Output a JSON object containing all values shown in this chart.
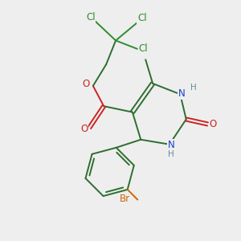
{
  "bg_color": "#eeeeee",
  "colors": {
    "bond": "#2d6e30",
    "Cl": "#2d8c30",
    "O": "#cc2222",
    "N": "#1a3fcc",
    "Br": "#cc6600",
    "H": "#6a8a9a"
  },
  "lw": 1.4,
  "fs": 8.5,
  "fs_small": 7.5
}
